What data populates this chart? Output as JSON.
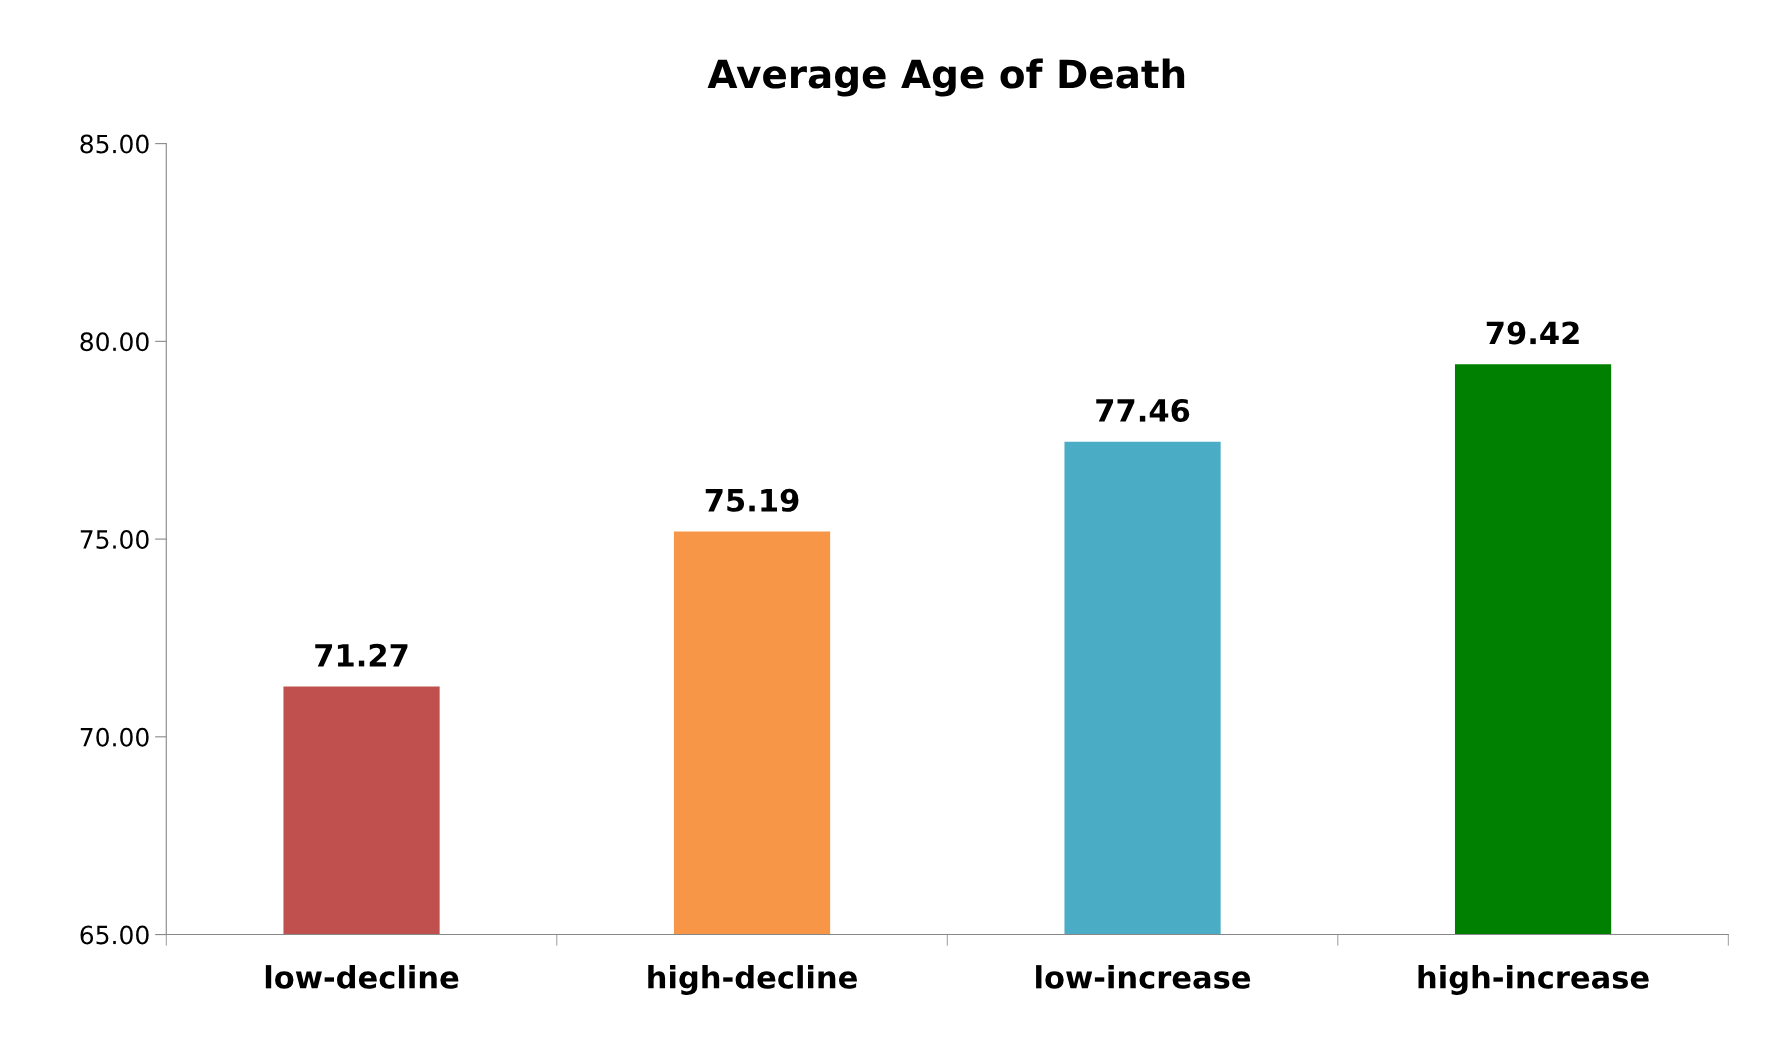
{
  "chart_data": {
    "type": "bar",
    "title": "Average Age of Death",
    "categories": [
      "low-decline",
      "high-decline",
      "low-increase",
      "high-increase"
    ],
    "values": [
      71.27,
      75.19,
      77.46,
      79.42
    ],
    "colors": [
      "#c0504d",
      "#f79646",
      "#4bacc6",
      "#008000"
    ],
    "ylim": [
      65,
      85
    ],
    "yticks": [
      {
        "value": 65,
        "label": "65.00"
      },
      {
        "value": 70,
        "label": "70.00"
      },
      {
        "value": 75,
        "label": "75.00"
      },
      {
        "value": 80,
        "label": "80.00"
      },
      {
        "value": 85,
        "label": "85.00"
      }
    ],
    "data_labels": true,
    "grid": false,
    "legend": false
  }
}
